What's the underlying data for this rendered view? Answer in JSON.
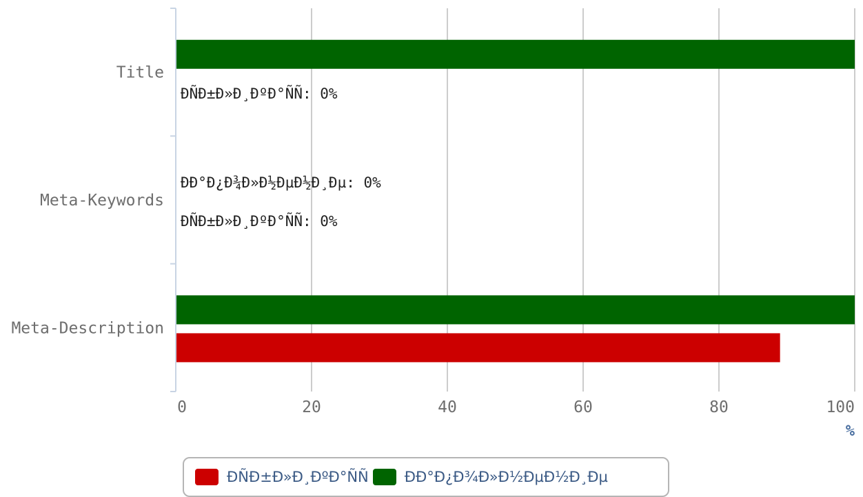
{
  "chart_data": {
    "type": "bar",
    "orientation": "horizontal",
    "categories": [
      "Title",
      "Meta-Keywords",
      "Meta-Description"
    ],
    "series": [
      {
        "name": "ÐÑÐ±Ð»Ð¸ÐºÐ°ÑÑ",
        "color": "#cc0000",
        "values": [
          0,
          0,
          89
        ]
      },
      {
        "name": "ÐÐ°Ð¿Ð¾Ð»Ð½ÐµÐ½Ð¸Ðµ",
        "color": "#006400",
        "values": [
          100,
          0,
          100
        ]
      }
    ],
    "zero_labels": [
      {
        "category": "Title",
        "text": "ÐÑÐ±Ð»Ð¸ÐºÐ°ÑÑ: 0%"
      },
      {
        "category": "Meta-Keywords",
        "text": "ÐÐ°Ð¿Ð¾Ð»Ð½ÐµÐ½Ð¸Ðµ: 0%"
      },
      {
        "category": "Meta-Keywords",
        "text": "ÐÑÐ±Ð»Ð¸ÐºÐ°ÑÑ: 0%"
      }
    ],
    "xlim": [
      0,
      100
    ],
    "xticks": [
      "0",
      "20",
      "40",
      "60",
      "80",
      "100"
    ],
    "xunit": "%",
    "grid": true,
    "legend_position": "bottom"
  }
}
